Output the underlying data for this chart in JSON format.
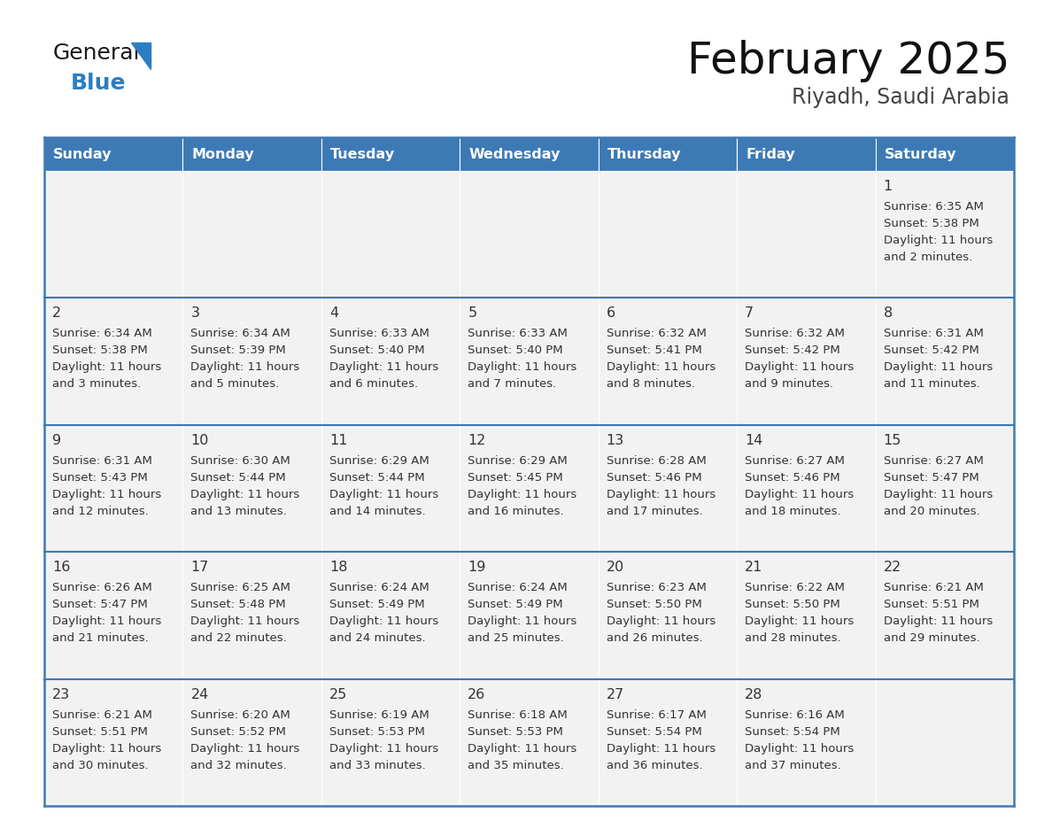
{
  "title": "February 2025",
  "subtitle": "Riyadh, Saudi Arabia",
  "days_of_week": [
    "Sunday",
    "Monday",
    "Tuesday",
    "Wednesday",
    "Thursday",
    "Friday",
    "Saturday"
  ],
  "header_bg_color": "#3D7AB5",
  "header_text_color": "#FFFFFF",
  "cell_bg_color": "#F2F2F2",
  "border_color": "#3D7AB5",
  "text_color": "#333333",
  "logo_black_color": "#1a1a1a",
  "logo_blue_color": "#2B7EC1",
  "calendar_data": [
    [
      null,
      null,
      null,
      null,
      null,
      null,
      {
        "day": "1",
        "sunrise": "6:35 AM",
        "sunset": "5:38 PM",
        "daylight_h": "11 hours",
        "daylight_m": "and 2 minutes."
      }
    ],
    [
      {
        "day": "2",
        "sunrise": "6:34 AM",
        "sunset": "5:38 PM",
        "daylight_h": "11 hours",
        "daylight_m": "and 3 minutes."
      },
      {
        "day": "3",
        "sunrise": "6:34 AM",
        "sunset": "5:39 PM",
        "daylight_h": "11 hours",
        "daylight_m": "and 5 minutes."
      },
      {
        "day": "4",
        "sunrise": "6:33 AM",
        "sunset": "5:40 PM",
        "daylight_h": "11 hours",
        "daylight_m": "and 6 minutes."
      },
      {
        "day": "5",
        "sunrise": "6:33 AM",
        "sunset": "5:40 PM",
        "daylight_h": "11 hours",
        "daylight_m": "and 7 minutes."
      },
      {
        "day": "6",
        "sunrise": "6:32 AM",
        "sunset": "5:41 PM",
        "daylight_h": "11 hours",
        "daylight_m": "and 8 minutes."
      },
      {
        "day": "7",
        "sunrise": "6:32 AM",
        "sunset": "5:42 PM",
        "daylight_h": "11 hours",
        "daylight_m": "and 9 minutes."
      },
      {
        "day": "8",
        "sunrise": "6:31 AM",
        "sunset": "5:42 PM",
        "daylight_h": "11 hours",
        "daylight_m": "and 11 minutes."
      }
    ],
    [
      {
        "day": "9",
        "sunrise": "6:31 AM",
        "sunset": "5:43 PM",
        "daylight_h": "11 hours",
        "daylight_m": "and 12 minutes."
      },
      {
        "day": "10",
        "sunrise": "6:30 AM",
        "sunset": "5:44 PM",
        "daylight_h": "11 hours",
        "daylight_m": "and 13 minutes."
      },
      {
        "day": "11",
        "sunrise": "6:29 AM",
        "sunset": "5:44 PM",
        "daylight_h": "11 hours",
        "daylight_m": "and 14 minutes."
      },
      {
        "day": "12",
        "sunrise": "6:29 AM",
        "sunset": "5:45 PM",
        "daylight_h": "11 hours",
        "daylight_m": "and 16 minutes."
      },
      {
        "day": "13",
        "sunrise": "6:28 AM",
        "sunset": "5:46 PM",
        "daylight_h": "11 hours",
        "daylight_m": "and 17 minutes."
      },
      {
        "day": "14",
        "sunrise": "6:27 AM",
        "sunset": "5:46 PM",
        "daylight_h": "11 hours",
        "daylight_m": "and 18 minutes."
      },
      {
        "day": "15",
        "sunrise": "6:27 AM",
        "sunset": "5:47 PM",
        "daylight_h": "11 hours",
        "daylight_m": "and 20 minutes."
      }
    ],
    [
      {
        "day": "16",
        "sunrise": "6:26 AM",
        "sunset": "5:47 PM",
        "daylight_h": "11 hours",
        "daylight_m": "and 21 minutes."
      },
      {
        "day": "17",
        "sunrise": "6:25 AM",
        "sunset": "5:48 PM",
        "daylight_h": "11 hours",
        "daylight_m": "and 22 minutes."
      },
      {
        "day": "18",
        "sunrise": "6:24 AM",
        "sunset": "5:49 PM",
        "daylight_h": "11 hours",
        "daylight_m": "and 24 minutes."
      },
      {
        "day": "19",
        "sunrise": "6:24 AM",
        "sunset": "5:49 PM",
        "daylight_h": "11 hours",
        "daylight_m": "and 25 minutes."
      },
      {
        "day": "20",
        "sunrise": "6:23 AM",
        "sunset": "5:50 PM",
        "daylight_h": "11 hours",
        "daylight_m": "and 26 minutes."
      },
      {
        "day": "21",
        "sunrise": "6:22 AM",
        "sunset": "5:50 PM",
        "daylight_h": "11 hours",
        "daylight_m": "and 28 minutes."
      },
      {
        "day": "22",
        "sunrise": "6:21 AM",
        "sunset": "5:51 PM",
        "daylight_h": "11 hours",
        "daylight_m": "and 29 minutes."
      }
    ],
    [
      {
        "day": "23",
        "sunrise": "6:21 AM",
        "sunset": "5:51 PM",
        "daylight_h": "11 hours",
        "daylight_m": "and 30 minutes."
      },
      {
        "day": "24",
        "sunrise": "6:20 AM",
        "sunset": "5:52 PM",
        "daylight_h": "11 hours",
        "daylight_m": "and 32 minutes."
      },
      {
        "day": "25",
        "sunrise": "6:19 AM",
        "sunset": "5:53 PM",
        "daylight_h": "11 hours",
        "daylight_m": "and 33 minutes."
      },
      {
        "day": "26",
        "sunrise": "6:18 AM",
        "sunset": "5:53 PM",
        "daylight_h": "11 hours",
        "daylight_m": "and 35 minutes."
      },
      {
        "day": "27",
        "sunrise": "6:17 AM",
        "sunset": "5:54 PM",
        "daylight_h": "11 hours",
        "daylight_m": "and 36 minutes."
      },
      {
        "day": "28",
        "sunrise": "6:16 AM",
        "sunset": "5:54 PM",
        "daylight_h": "11 hours",
        "daylight_m": "and 37 minutes."
      },
      null
    ]
  ]
}
